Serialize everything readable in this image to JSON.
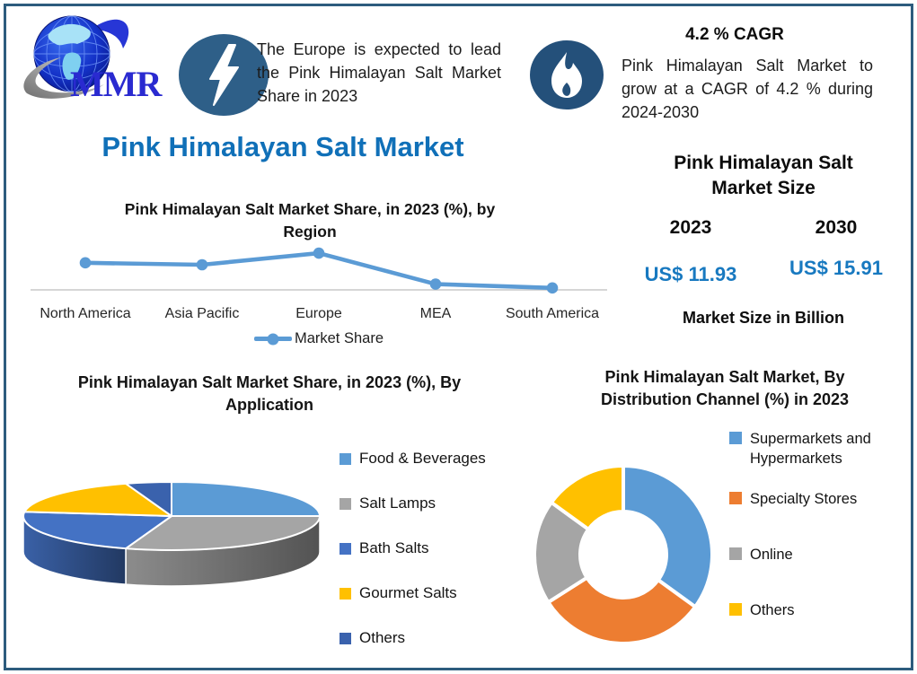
{
  "frame": {
    "border_color": "#2d5c7e",
    "background": "#ffffff"
  },
  "logo": {
    "text": "MMR"
  },
  "header": {
    "left_callout": {
      "icon": "lightning-icon",
      "badge_color": "#2e5f88",
      "text": "The Europe is expected to lead the Pink Himalayan Salt Market Share in 2023"
    },
    "right_callout": {
      "icon": "flame-icon",
      "badge_color": "#24507a",
      "heading": "4.2 % CAGR",
      "text": "Pink Himalayan Salt Market to grow at a CAGR of 4.2 % during 2024-2030"
    }
  },
  "main_title": {
    "text": "Pink Himalayan Salt Market",
    "color": "#1070b8"
  },
  "market_size": {
    "title": "Pink Himalayan Salt Market Size",
    "columns": [
      {
        "year": "2023",
        "value": "US$ 11.93"
      },
      {
        "year": "2030",
        "value": "US$ 15.91"
      }
    ],
    "note": "Market Size in Billion",
    "value_color": "#1879c0"
  },
  "chart_data": [
    {
      "type": "line",
      "title": "Pink Himalayan Salt Market Share, in 2023 (%), by Region",
      "categories": [
        "North America",
        "Asia Pacific",
        "Europe",
        "MEA",
        "South America"
      ],
      "series": [
        {
          "name": "Market Share",
          "values": [
            24,
            23,
            29,
            13,
            11
          ]
        }
      ],
      "ylim": [
        10,
        36
      ],
      "grid": false,
      "legend_position": "bottom",
      "line_color": "#5b9bd5",
      "axis_color": "#c9c9c9"
    },
    {
      "type": "pie",
      "variant": "3d",
      "title": "Pink Himalayan Salt Market Share, in 2023 (%), By Application",
      "categories": [
        "Food & Beverages",
        "Salt Lamps",
        "Bath Salts",
        "Gourmet Salts",
        "Others"
      ],
      "values": [
        25,
        30,
        22,
        18,
        5
      ],
      "colors": [
        "#5b9bd5",
        "#a5a5a5",
        "#4472c4",
        "#ffc000",
        "#3a62ad"
      ],
      "legend_position": "right"
    },
    {
      "type": "pie",
      "variant": "donut",
      "title": "Pink Himalayan Salt Market, By Distribution Channel (%) in 2023",
      "categories": [
        "Supermarkets and Hypermarkets",
        "Specialty Stores",
        "Online",
        "Others"
      ],
      "values": [
        35,
        31,
        19,
        15
      ],
      "colors": [
        "#5b9bd5",
        "#ed7d31",
        "#a5a5a5",
        "#ffc000"
      ],
      "legend_position": "right"
    }
  ]
}
